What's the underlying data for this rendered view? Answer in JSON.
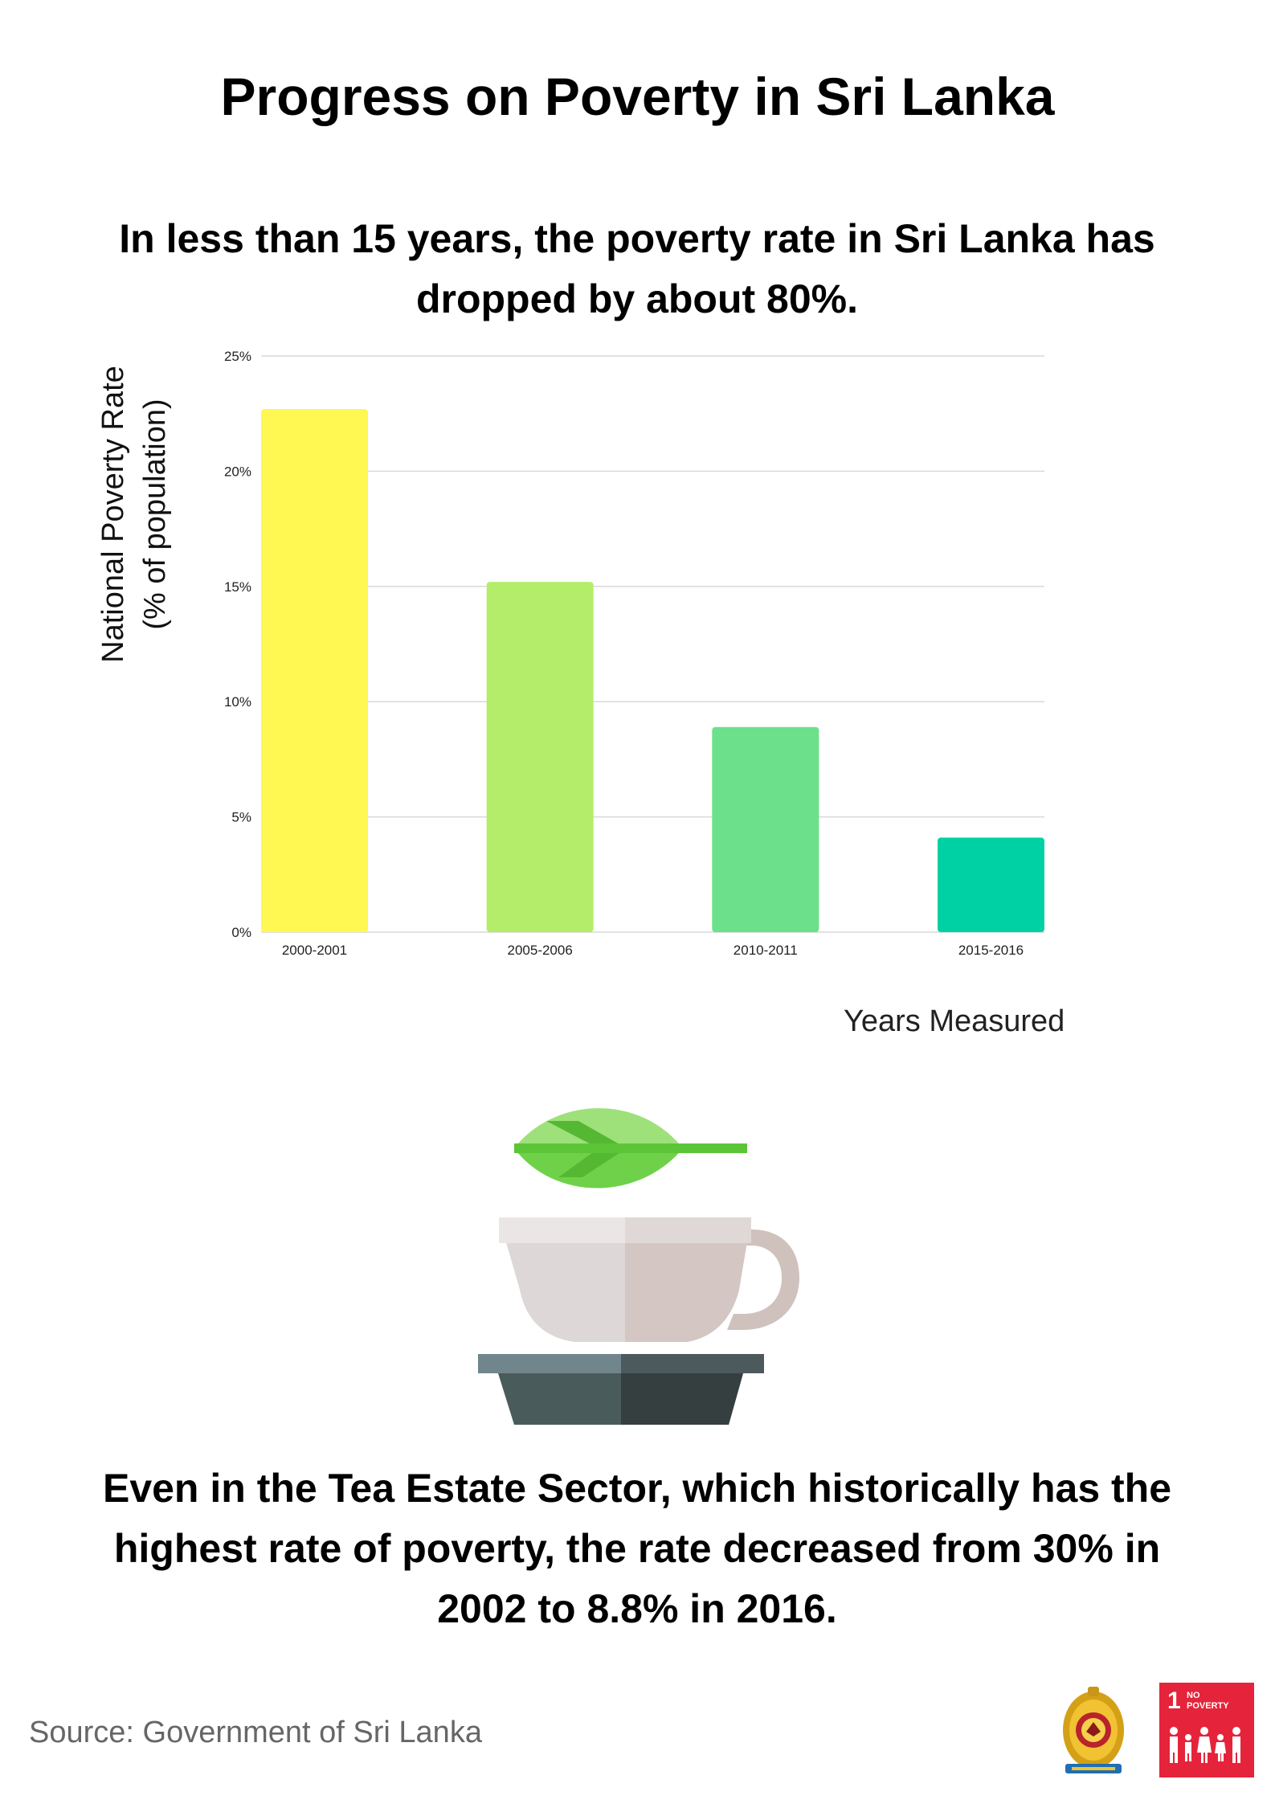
{
  "title": "Progress on Poverty in Sri Lanka",
  "subtitle": "In less than 15 years, the poverty rate in Sri Lanka has dropped by about 80%.",
  "chart_data": {
    "type": "bar",
    "categories": [
      "2000-2001",
      "2005-2006",
      "2010-2011",
      "2015-2016"
    ],
    "values": [
      22.7,
      15.2,
      8.9,
      4.1
    ],
    "unit": "%",
    "ylim": [
      0,
      25
    ],
    "yticks": [
      0,
      5,
      10,
      15,
      20,
      25
    ],
    "ytick_labels": [
      "0%",
      "5%",
      "10%",
      "15%",
      "20%",
      "25%"
    ],
    "ylabel_line1": "National Poverty Rate",
    "ylabel_line2": "(% of population)",
    "xlabel": "Years Measured",
    "grid": true,
    "colors": [
      "#fff752",
      "#b4ed6a",
      "#6ce08a",
      "#00d1a4"
    ]
  },
  "tea_text": "Even in the Tea Estate Sector, which historically has the highest rate of poverty, the rate decreased from 30% in 2002 to 8.8% in 2016.",
  "source": "Source: Government of Sri Lanka",
  "icons": [
    "tea-leaf-icon",
    "teacup-icon",
    "sri-lanka-emblem-icon",
    "sdg-no-poverty-icon"
  ],
  "sdg_badge": {
    "number": "1",
    "text": "NO POVERTY",
    "color": "#e5243b"
  }
}
